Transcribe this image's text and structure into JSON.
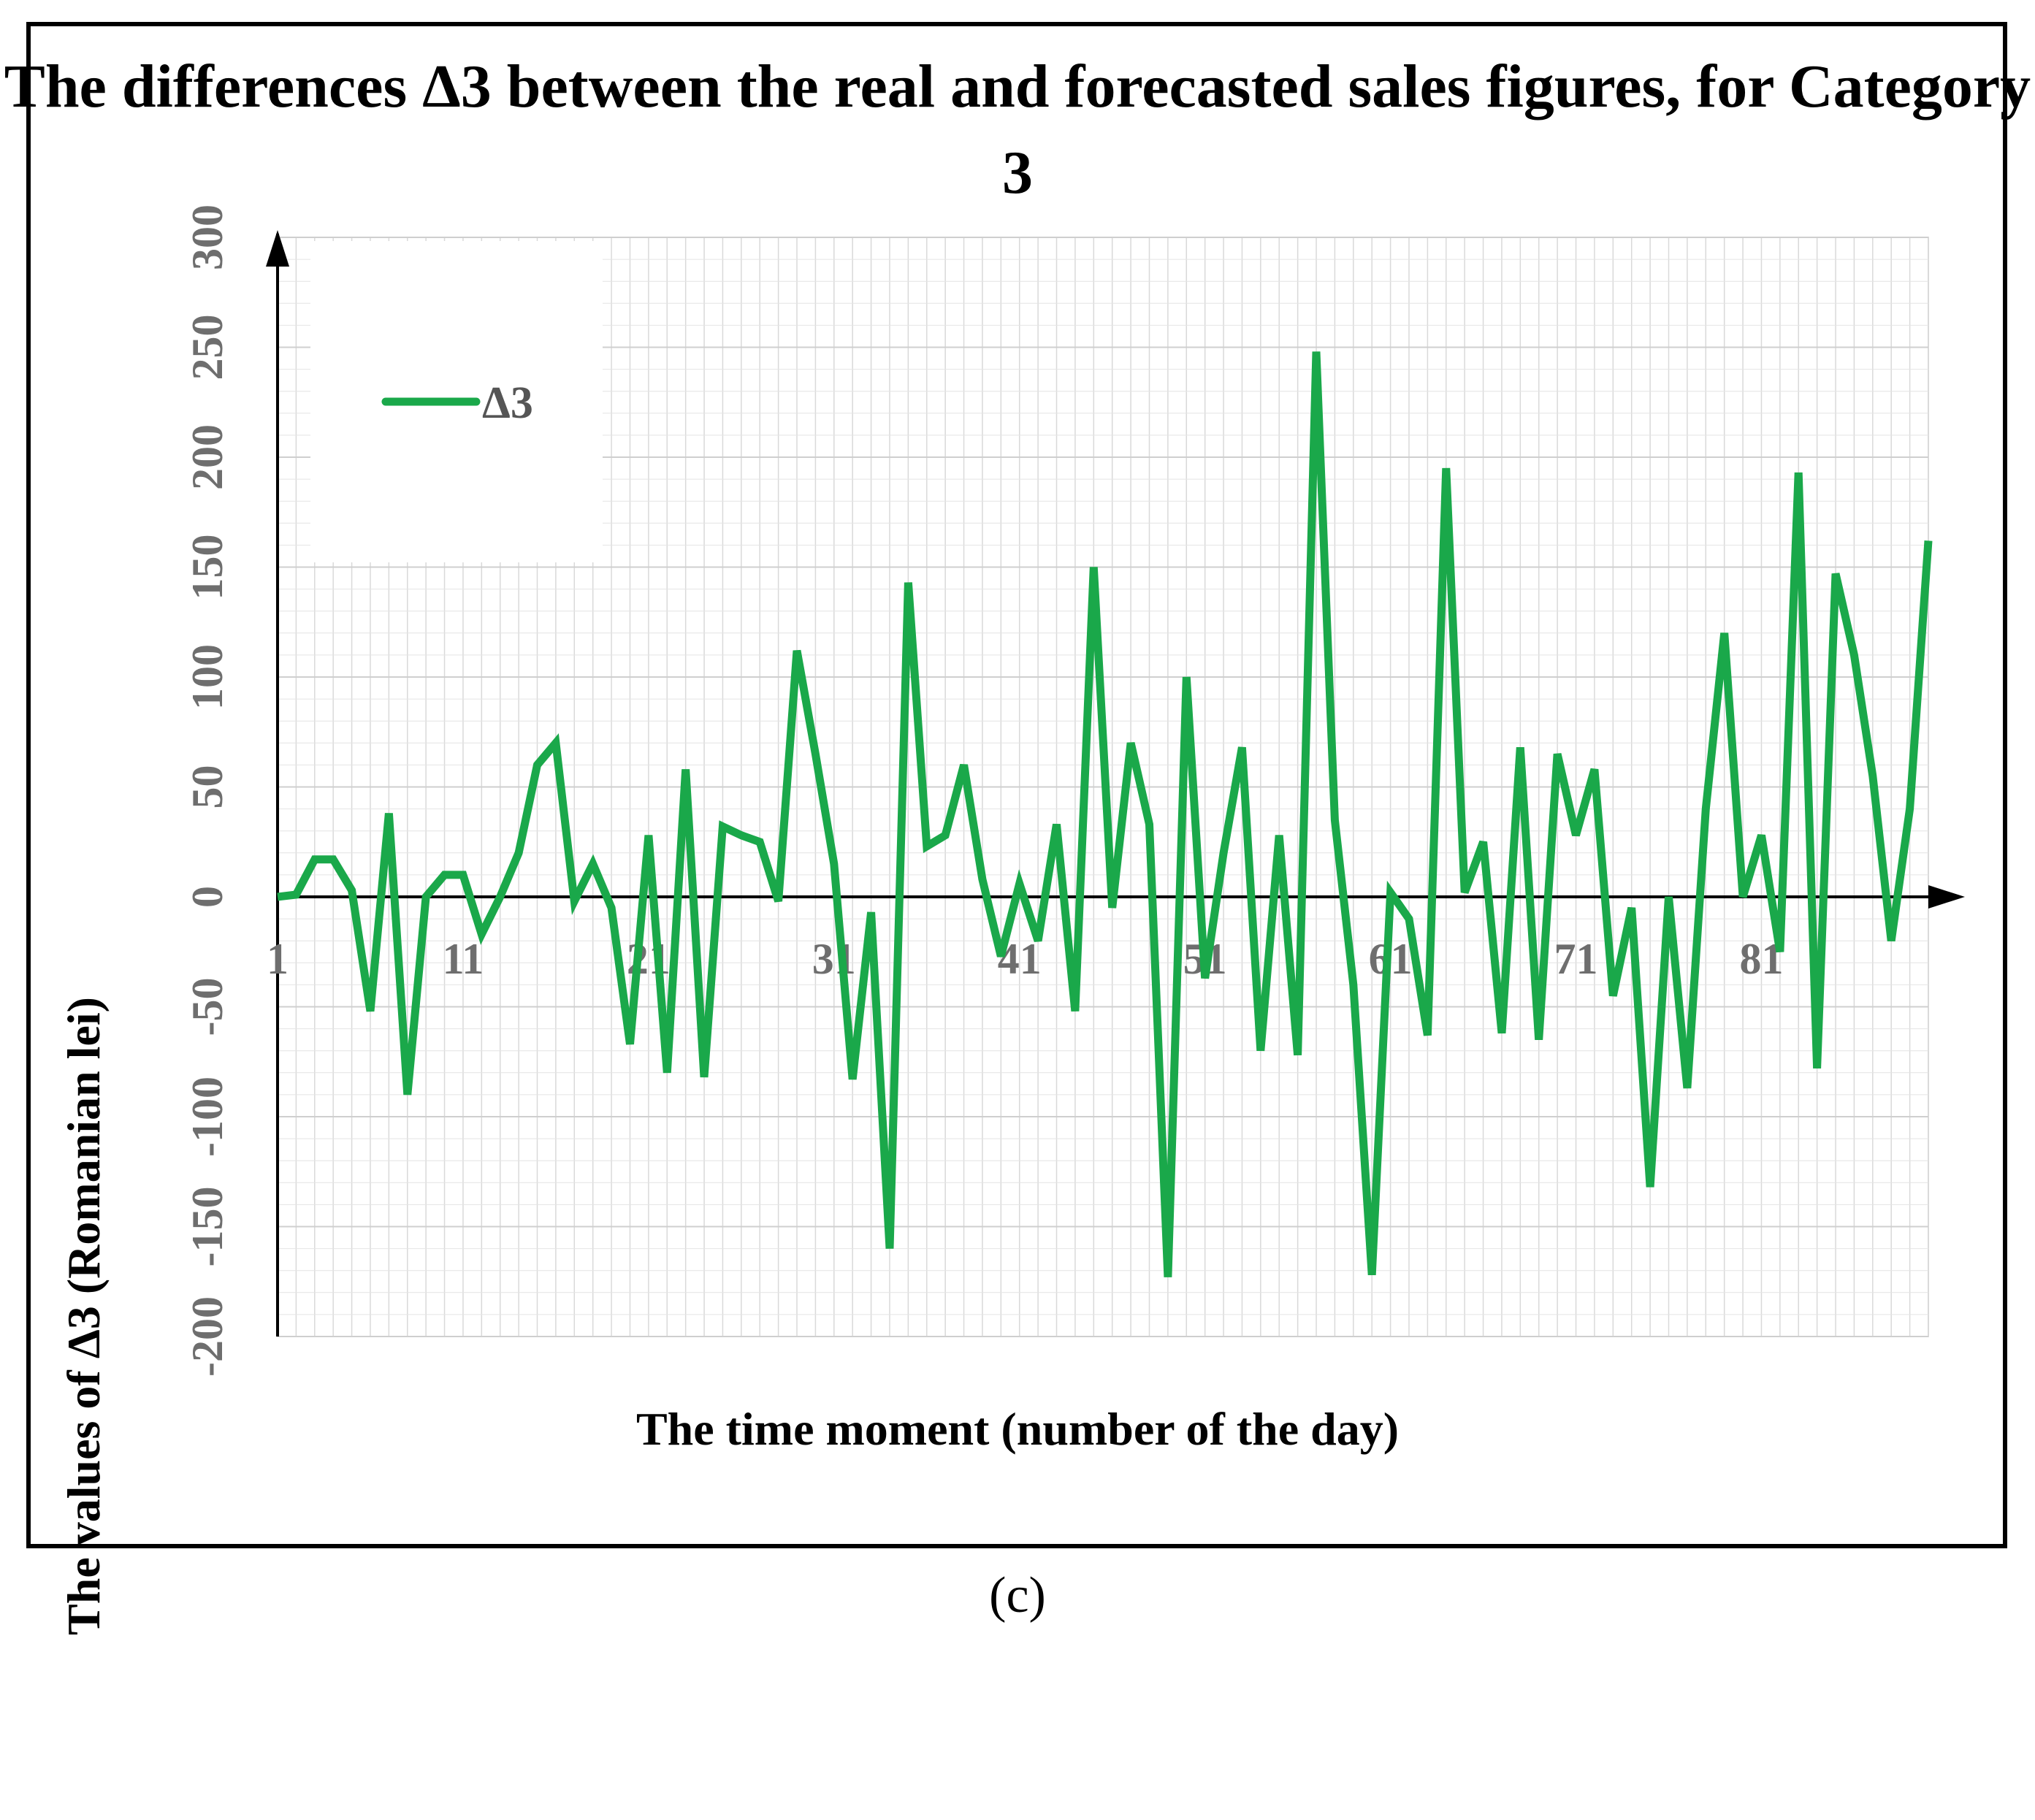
{
  "caption": "(c)",
  "chart_data": {
    "type": "line",
    "title": "The differences Δ3 between the real and forecasted sales figures, for Category 3",
    "xlabel": "The time moment (number of the day)",
    "ylabel": "The values of Δ3 (Romanian lei)",
    "x_ticks": [
      "1",
      "11",
      "21",
      "31",
      "41",
      "51",
      "61",
      "71",
      "81"
    ],
    "y_ticks": [
      "-200",
      "-150",
      "-100",
      "-50",
      "0",
      "50",
      "100",
      "150",
      "200",
      "250",
      "300"
    ],
    "ylim": [
      -200,
      300
    ],
    "xlim": [
      1,
      90
    ],
    "grid": true,
    "legend": "top-left",
    "line_color": "#1aa84a",
    "series": [
      {
        "name": "Δ3",
        "x": [
          1,
          2,
          3,
          4,
          5,
          6,
          7,
          8,
          9,
          10,
          11,
          12,
          13,
          14,
          15,
          16,
          17,
          18,
          19,
          20,
          21,
          22,
          23,
          24,
          25,
          26,
          27,
          28,
          29,
          30,
          31,
          32,
          33,
          34,
          35,
          36,
          37,
          38,
          39,
          40,
          41,
          42,
          43,
          44,
          45,
          46,
          47,
          48,
          49,
          50,
          51,
          52,
          53,
          54,
          55,
          56,
          57,
          58,
          59,
          60,
          61,
          62,
          63,
          64,
          65,
          66,
          67,
          68,
          69,
          70,
          71,
          72,
          73,
          74,
          75,
          76,
          77,
          78,
          79,
          80,
          81,
          82,
          83,
          84,
          85,
          86,
          87,
          88,
          89,
          90
        ],
        "values": [
          0,
          1,
          17,
          17,
          3,
          -52,
          38,
          -90,
          0,
          10,
          10,
          -17,
          0,
          20,
          60,
          70,
          -2,
          15,
          -5,
          -67,
          28,
          -80,
          58,
          -82,
          32,
          28,
          25,
          -2,
          112,
          65,
          15,
          -83,
          -7,
          -160,
          143,
          23,
          28,
          60,
          8,
          -27,
          6,
          -20,
          33,
          -52,
          150,
          -5,
          70,
          33,
          -173,
          100,
          -37,
          20,
          68,
          -70,
          28,
          -72,
          248,
          35,
          -40,
          -172,
          2,
          -10,
          -63,
          195,
          2,
          25,
          -62,
          68,
          -65,
          65,
          28,
          58,
          -45,
          -5,
          -132,
          0,
          -87,
          40,
          120,
          0,
          28,
          -25,
          193,
          -78,
          147,
          110,
          55,
          -20,
          40,
          162
        ]
      }
    ]
  }
}
